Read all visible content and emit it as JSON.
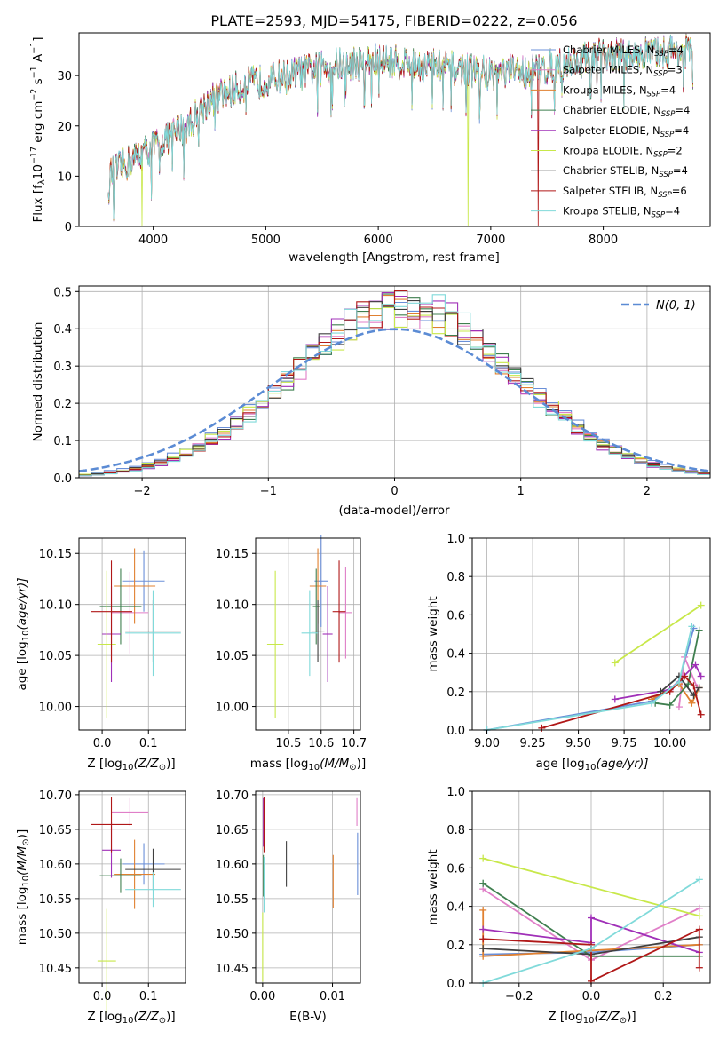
{
  "figure": {
    "title": "PLATE=2593, MJD=54175, FIBERID=0222, z=0.056"
  },
  "models": [
    {
      "name": "Chabrier MILES",
      "nssp": "4",
      "color": "#6a8fd8"
    },
    {
      "name": "Salpeter MILES",
      "nssp": "3",
      "color": "#e07fc8"
    },
    {
      "name": "Kroupa MILES",
      "nssp": "4",
      "color": "#e08030"
    },
    {
      "name": "Chabrier ELODIE",
      "nssp": "4",
      "color": "#3f7f4f"
    },
    {
      "name": "Salpeter ELODIE",
      "nssp": "4",
      "color": "#a030b8"
    },
    {
      "name": "Kroupa ELODIE",
      "nssp": "2",
      "color": "#c8e84a"
    },
    {
      "name": "Chabrier STELIB",
      "nssp": "4",
      "color": "#404040"
    },
    {
      "name": "Salpeter STELIB",
      "nssp": "6",
      "color": "#b01818"
    },
    {
      "name": "Kroupa STELIB",
      "nssp": "4",
      "color": "#80dada"
    }
  ],
  "chart_data": [
    {
      "id": "spectrum",
      "type": "line",
      "xlabel": "wavelength [Angstrom, rest frame]",
      "ylabel": "Flux [f",
      "ylabel_sub": "λ",
      "ylabel_rest": "10",
      "ylabel_exp1": "−17",
      "ylabel_mid": " erg cm",
      "ylabel_exp2": "−2",
      "ylabel_s": " s",
      "ylabel_exp3": "−1",
      "ylabel_end": " A",
      "ylabel_exp4": "−1",
      "ylabel_close": "]",
      "xlim": [
        3340,
        8950
      ],
      "ylim": [
        0,
        38.5
      ],
      "xticks": [
        "4000",
        "5000",
        "6000",
        "7000",
        "8000"
      ],
      "yticks": [
        "0",
        "10",
        "20",
        "30"
      ],
      "legend_nssp": "N",
      "legend_nssp_sub": "SSP",
      "legend": "top-right",
      "wavelength_range": [
        3600,
        8800
      ],
      "continuum": [
        [
          3600,
          10
        ],
        [
          3800,
          13
        ],
        [
          4000,
          16
        ],
        [
          4300,
          20
        ],
        [
          4500,
          25
        ],
        [
          4800,
          28
        ],
        [
          5200,
          30
        ],
        [
          5600,
          32
        ],
        [
          6000,
          33
        ],
        [
          6500,
          32
        ],
        [
          7000,
          30.5
        ],
        [
          7400,
          31
        ],
        [
          8000,
          34
        ],
        [
          8800,
          35
        ]
      ]
    },
    {
      "id": "residuals",
      "type": "histogram",
      "xlabel": "(data-model)/error",
      "ylabel": "Normed distribution",
      "xlim": [
        -2.5,
        2.5
      ],
      "ylim": [
        0,
        0.515
      ],
      "xticks": [
        "−2",
        "−1",
        "0",
        "1",
        "2"
      ],
      "yticks": [
        "0.0",
        "0.1",
        "0.2",
        "0.3",
        "0.4",
        "0.5"
      ],
      "grid": true,
      "legend": "top-right",
      "reference_label": "N(0, 1)",
      "reference": {
        "mean": 0,
        "sigma": 1
      }
    },
    {
      "id": "age-vs-Z",
      "type": "errorbar",
      "xlabel": "Z [log",
      "xlabel_sub": "10",
      "xlabel_rest": "(Z/Z",
      "xlabel_odot": "⊙",
      "xlabel_end": ")]",
      "ylabel": "age  [log",
      "ylabel_sub": "10",
      "ylabel_rest": "(age/yr)]",
      "xlim": [
        -0.05,
        0.18
      ],
      "ylim": [
        9.977,
        10.165
      ],
      "xticks": [
        "0.0",
        "0.1"
      ],
      "xtick_vals": [
        0,
        0.1
      ],
      "yticks": [
        "10.00",
        "10.05",
        "10.10",
        "10.15"
      ],
      "ytick_vals": [
        10.0,
        10.05,
        10.1,
        10.15
      ],
      "points": [
        {
          "model": 0,
          "x": 0.09,
          "y": 10.123,
          "xerr": 0.045,
          "yerr": 0.03
        },
        {
          "model": 1,
          "x": 0.06,
          "y": 10.092,
          "xerr": 0.04,
          "yerr": 0.04
        },
        {
          "model": 2,
          "x": 0.07,
          "y": 10.118,
          "xerr": 0.045,
          "yerr": 0.037
        },
        {
          "model": 3,
          "x": 0.04,
          "y": 10.098,
          "xerr": 0.045,
          "yerr": 0.037
        },
        {
          "model": 4,
          "x": 0.02,
          "y": 10.071,
          "xerr": 0.02,
          "yerr": 0.047
        },
        {
          "model": 5,
          "x": 0.01,
          "y": 10.061,
          "xerr": 0.02,
          "yerr": 0.072
        },
        {
          "model": 6,
          "x": 0.11,
          "y": 10.074,
          "xerr": 0.06,
          "yerr": 0.03
        },
        {
          "model": 7,
          "x": 0.02,
          "y": 10.093,
          "xerr": 0.045,
          "yerr": 0.05
        },
        {
          "model": 8,
          "x": 0.11,
          "y": 10.072,
          "xerr": 0.06,
          "yerr": 0.042
        }
      ]
    },
    {
      "id": "age-vs-mass",
      "type": "errorbar",
      "xlabel": "mass [log",
      "xlabel_sub": "10",
      "xlabel_rest": "(M/M",
      "xlabel_odot": "⊙",
      "xlabel_end": ")]",
      "xlim": [
        10.4,
        10.72
      ],
      "ylim": [
        9.977,
        10.165
      ],
      "xticks": [
        "10.5",
        "10.6",
        "10.7"
      ],
      "xtick_vals": [
        10.5,
        10.6,
        10.7
      ],
      "yticks": [
        "10.00",
        "10.05",
        "10.10",
        "10.15"
      ],
      "ytick_vals": [
        10.0,
        10.05,
        10.1,
        10.15
      ],
      "points": [
        {
          "model": 0,
          "x": 10.6,
          "y": 10.123,
          "xerr": 0.02,
          "yerr": 0.045
        },
        {
          "model": 1,
          "x": 10.675,
          "y": 10.092,
          "xerr": 0.02,
          "yerr": 0.045
        },
        {
          "model": 2,
          "x": 10.59,
          "y": 10.118,
          "xerr": 0.025,
          "yerr": 0.037
        },
        {
          "model": 3,
          "x": 10.585,
          "y": 10.098,
          "xerr": 0.01,
          "yerr": 0.037
        },
        {
          "model": 4,
          "x": 10.62,
          "y": 10.071,
          "xerr": 0.015,
          "yerr": 0.047
        },
        {
          "model": 5,
          "x": 10.46,
          "y": 10.061,
          "xerr": 0.025,
          "yerr": 0.072
        },
        {
          "model": 6,
          "x": 10.59,
          "y": 10.074,
          "xerr": 0.02,
          "yerr": 0.03
        },
        {
          "model": 7,
          "x": 10.655,
          "y": 10.093,
          "xerr": 0.02,
          "yerr": 0.05
        },
        {
          "model": 8,
          "x": 10.565,
          "y": 10.072,
          "xerr": 0.025,
          "yerr": 0.042
        }
      ]
    },
    {
      "id": "massweight-vs-age",
      "type": "line",
      "xlabel": "age  [log",
      "xlabel_sub": "10",
      "xlabel_rest": "(age/yr)]",
      "ylabel": "mass weight",
      "xlim": [
        8.92,
        10.22
      ],
      "ylim": [
        0,
        1.0
      ],
      "xticks": [
        "9.00",
        "9.25",
        "9.50",
        "9.75",
        "10.00"
      ],
      "xtick_vals": [
        9.0,
        9.25,
        9.5,
        9.75,
        10.0
      ],
      "yticks": [
        "0.0",
        "0.2",
        "0.4",
        "0.6",
        "0.8",
        "1.0"
      ],
      "ytick_vals": [
        0,
        0.2,
        0.4,
        0.6,
        0.8,
        1.0
      ],
      "grid": true,
      "series": [
        {
          "model": 0,
          "points": [
            [
              9.0,
              0.0
            ],
            [
              9.9,
              0.15
            ],
            [
              10.05,
              0.25
            ],
            [
              10.13,
              0.53
            ]
          ]
        },
        {
          "model": 1,
          "points": [
            [
              10.05,
              0.12
            ],
            [
              10.08,
              0.38
            ],
            [
              10.15,
              0.22
            ]
          ]
        },
        {
          "model": 2,
          "points": [
            [
              9.9,
              0.16
            ],
            [
              10.05,
              0.24
            ],
            [
              10.12,
              0.14
            ],
            [
              10.16,
              0.22
            ]
          ]
        },
        {
          "model": 3,
          "points": [
            [
              9.92,
              0.14
            ],
            [
              10.0,
              0.13
            ],
            [
              10.1,
              0.24
            ],
            [
              10.16,
              0.52
            ]
          ]
        },
        {
          "model": 4,
          "points": [
            [
              9.7,
              0.16
            ],
            [
              10.0,
              0.21
            ],
            [
              10.14,
              0.34
            ],
            [
              10.17,
              0.28
            ]
          ]
        },
        {
          "model": 5,
          "points": [
            [
              9.7,
              0.35
            ],
            [
              10.17,
              0.65
            ]
          ]
        },
        {
          "model": 6,
          "points": [
            [
              9.95,
              0.2
            ],
            [
              10.05,
              0.28
            ],
            [
              10.13,
              0.18
            ],
            [
              10.16,
              0.22
            ]
          ]
        },
        {
          "model": 7,
          "points": [
            [
              9.3,
              0.01
            ],
            [
              10.0,
              0.2
            ],
            [
              10.08,
              0.28
            ],
            [
              10.13,
              0.23
            ],
            [
              10.17,
              0.08
            ]
          ]
        },
        {
          "model": 8,
          "points": [
            [
              9.0,
              0.0
            ],
            [
              9.9,
              0.14
            ],
            [
              10.05,
              0.25
            ],
            [
              10.12,
              0.54
            ]
          ]
        }
      ]
    },
    {
      "id": "mass-vs-Z",
      "type": "errorbar",
      "xlabel": "Z [log",
      "xlabel_sub": "10",
      "xlabel_rest": "(Z/Z",
      "xlabel_odot": "⊙",
      "xlabel_end": ")]",
      "ylabel": "mass [log",
      "ylabel_sub": "10",
      "ylabel_rest": "(M/M",
      "ylabel_odot": "⊙",
      "ylabel_end": ")]",
      "xlim": [
        -0.05,
        0.18
      ],
      "ylim": [
        10.428,
        10.705
      ],
      "xticks": [
        "0.0",
        "0.1"
      ],
      "xtick_vals": [
        0,
        0.1
      ],
      "yticks": [
        "10.45",
        "10.50",
        "10.55",
        "10.60",
        "10.65",
        "10.70"
      ],
      "ytick_vals": [
        10.45,
        10.5,
        10.55,
        10.6,
        10.65,
        10.7
      ],
      "points": [
        {
          "model": 0,
          "x": 0.09,
          "y": 10.6,
          "xerr": 0.045,
          "yerr": 0.03
        },
        {
          "model": 1,
          "x": 0.06,
          "y": 10.675,
          "xerr": 0.04,
          "yerr": 0.02
        },
        {
          "model": 2,
          "x": 0.07,
          "y": 10.585,
          "xerr": 0.045,
          "yerr": 0.05
        },
        {
          "model": 3,
          "x": 0.04,
          "y": 10.583,
          "xerr": 0.045,
          "yerr": 0.025
        },
        {
          "model": 4,
          "x": 0.02,
          "y": 10.62,
          "xerr": 0.02,
          "yerr": 0.04
        },
        {
          "model": 5,
          "x": 0.01,
          "y": 10.46,
          "xerr": 0.02,
          "yerr": 0.075
        },
        {
          "model": 6,
          "x": 0.11,
          "y": 10.592,
          "xerr": 0.06,
          "yerr": 0.03
        },
        {
          "model": 7,
          "x": 0.02,
          "y": 10.657,
          "xerr": 0.045,
          "yerr": 0.04
        },
        {
          "model": 8,
          "x": 0.11,
          "y": 10.563,
          "xerr": 0.06,
          "yerr": 0.025
        }
      ]
    },
    {
      "id": "mass-vs-ebv",
      "type": "errorbar",
      "xlabel": "E(B-V)",
      "xlim": [
        -0.001,
        0.014
      ],
      "ylim": [
        10.428,
        10.705
      ],
      "xticks": [
        "0.00",
        "0.01"
      ],
      "xtick_vals": [
        0,
        0.01
      ],
      "yticks": [
        "10.45",
        "10.50",
        "10.55",
        "10.60",
        "10.65",
        "10.70"
      ],
      "ytick_vals": [
        10.45,
        10.5,
        10.55,
        10.6,
        10.65,
        10.7
      ],
      "points": [
        {
          "model": 0,
          "x": 0.0136,
          "y": 10.6,
          "xerr": 0,
          "yerr": 0.045
        },
        {
          "model": 1,
          "x": 0.0135,
          "y": 10.675,
          "xerr": 0,
          "yerr": 0.02
        },
        {
          "model": 2,
          "x": 0.0101,
          "y": 10.575,
          "xerr": 0,
          "yerr": 0.038
        },
        {
          "model": 3,
          "x": 0.0001,
          "y": 10.583,
          "xerr": 0,
          "yerr": 0.03
        },
        {
          "model": 4,
          "x": 0.0001,
          "y": 10.66,
          "xerr": 0,
          "yerr": 0.035
        },
        {
          "model": 5,
          "x": 0.0,
          "y": 10.48,
          "xerr": 0,
          "yerr": 0.05
        },
        {
          "model": 6,
          "x": 0.0034,
          "y": 10.6,
          "xerr": 0,
          "yerr": 0.033
        },
        {
          "model": 7,
          "x": 0.0002,
          "y": 10.657,
          "xerr": 0,
          "yerr": 0.04
        },
        {
          "model": 8,
          "x": 0.0002,
          "y": 10.57,
          "xerr": 0,
          "yerr": 0.04
        }
      ]
    },
    {
      "id": "massweight-vs-Z",
      "type": "line",
      "xlabel": "Z [log",
      "xlabel_sub": "10",
      "xlabel_rest": "(Z/Z",
      "xlabel_odot": "⊙",
      "xlabel_end": ")]",
      "ylabel": "mass weight",
      "xlim": [
        -0.33,
        0.33
      ],
      "ylim": [
        0,
        1.0
      ],
      "xticks": [
        "−0.2",
        "0.0",
        "0.2"
      ],
      "xtick_vals": [
        -0.2,
        0,
        0.2
      ],
      "yticks": [
        "0.0",
        "0.2",
        "0.4",
        "0.6",
        "0.8",
        "1.0"
      ],
      "ytick_vals": [
        0,
        0.2,
        0.4,
        0.6,
        0.8,
        1.0
      ],
      "grid": true,
      "series": [
        {
          "model": 0,
          "points": [
            [
              -0.3,
              0.15
            ],
            [
              0.0,
              0.16
            ],
            [
              0.3,
              0.2
            ]
          ]
        },
        {
          "model": 1,
          "points": [
            [
              -0.3,
              0.49
            ],
            [
              0.0,
              0.12
            ],
            [
              0.3,
              0.39
            ]
          ]
        },
        {
          "model": 2,
          "points": [
            [
              -0.3,
              0.38
            ],
            [
              -0.3,
              0.14
            ],
            [
              0.0,
              0.17
            ],
            [
              0.3,
              0.2
            ]
          ]
        },
        {
          "model": 3,
          "points": [
            [
              -0.3,
              0.52
            ],
            [
              0.0,
              0.14
            ],
            [
              0.3,
              0.14
            ]
          ]
        },
        {
          "model": 4,
          "points": [
            [
              -0.3,
              0.28
            ],
            [
              0.0,
              0.21
            ],
            [
              0.0,
              0.34
            ],
            [
              0.3,
              0.16
            ]
          ]
        },
        {
          "model": 5,
          "points": [
            [
              -0.3,
              0.65
            ],
            [
              0.3,
              0.35
            ]
          ]
        },
        {
          "model": 6,
          "points": [
            [
              -0.3,
              0.18
            ],
            [
              0.0,
              0.15
            ],
            [
              0.3,
              0.24
            ]
          ]
        },
        {
          "model": 7,
          "points": [
            [
              -0.3,
              0.23
            ],
            [
              0.0,
              0.2
            ],
            [
              0.0,
              0.01
            ],
            [
              0.3,
              0.28
            ],
            [
              0.3,
              0.08
            ]
          ]
        },
        {
          "model": 8,
          "points": [
            [
              -0.3,
              0.0
            ],
            [
              0.0,
              0.18
            ],
            [
              0.3,
              0.54
            ]
          ]
        }
      ]
    }
  ]
}
